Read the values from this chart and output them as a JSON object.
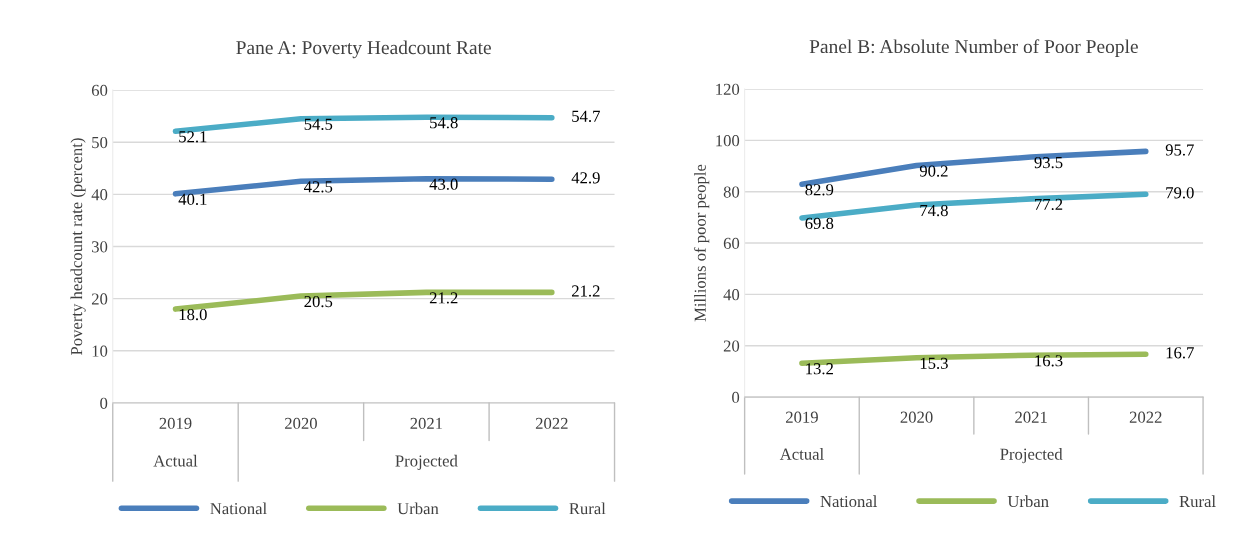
{
  "chart_data": [
    {
      "type": "line",
      "title": "Pane A: Poverty Headcount Rate",
      "ylabel": "Poverty headcount rate (percent)",
      "categories": [
        "2019",
        "2020",
        "2021",
        "2022"
      ],
      "series": [
        {
          "name": "National",
          "color": "#4a7ebb",
          "values": [
            40.1,
            42.5,
            43,
            42.9
          ],
          "value_labels": [
            "40.1",
            "42.5",
            "43.0",
            "42.9"
          ]
        },
        {
          "name": "Urban",
          "color": "#9bbb59",
          "values": [
            18,
            20.5,
            21.2,
            21.2
          ],
          "value_labels": [
            "18.0",
            "20.5",
            "21.2",
            "21.2"
          ]
        },
        {
          "name": "Rural",
          "color": "#4bacc6",
          "values": [
            52.1,
            54.5,
            54.8,
            54.7
          ],
          "value_labels": [
            "52.1",
            "54.5",
            "54.8",
            "54.7"
          ]
        }
      ],
      "ylim": [
        0,
        60
      ],
      "yticks": [
        0,
        10,
        20,
        30,
        40,
        50,
        60
      ],
      "grid": "y",
      "legend": "bottom",
      "annotations": [
        "Actual",
        "Projected"
      ]
    },
    {
      "type": "line",
      "title": "Panel B: Absolute Number of Poor People",
      "ylabel": "Millions of poor people",
      "categories": [
        "2019",
        "2020",
        "2021",
        "2022"
      ],
      "series": [
        {
          "name": "National",
          "color": "#4a7ebb",
          "values": [
            82.9,
            90.2,
            93.5,
            95.7
          ],
          "value_labels": [
            "82.9",
            "90.2",
            "93.5",
            "95.7"
          ]
        },
        {
          "name": "Urban",
          "color": "#9bbb59",
          "values": [
            13.2,
            15.3,
            16.3,
            16.7
          ],
          "value_labels": [
            "13.2",
            "15.3",
            "16.3",
            "16.7"
          ]
        },
        {
          "name": "Rural",
          "color": "#4bacc6",
          "values": [
            69.8,
            74.8,
            77.2,
            79
          ],
          "value_labels": [
            "69.8",
            "74.8",
            "77.2",
            "79.0"
          ]
        }
      ],
      "ylim": [
        0,
        120
      ],
      "yticks": [
        0,
        20,
        40,
        60,
        80,
        100,
        120
      ],
      "grid": "y",
      "legend": "bottom",
      "annotations": [
        "Actual",
        "Projected"
      ]
    }
  ]
}
